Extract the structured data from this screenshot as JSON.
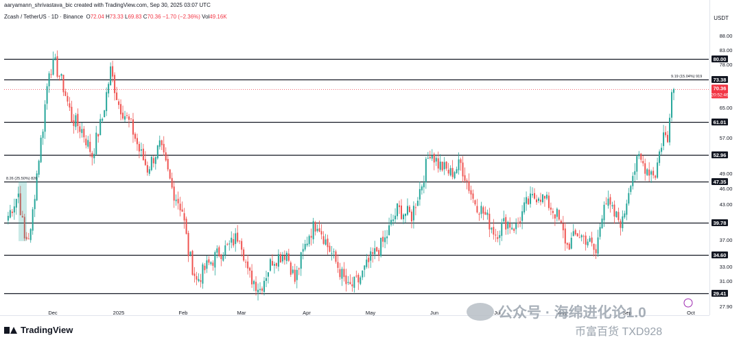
{
  "header": {
    "credit": "aaryamann_shrivastava_bic created with TradingView.com, Sep 30, 2025 03:07 UTC",
    "symbol": "Zcash / TetherUS · 1D · Binance",
    "open_label": "O",
    "open": "72.04",
    "high_label": "H",
    "high": "73.33",
    "low_label": "L",
    "low": "69.83",
    "close_label": "C",
    "close": "70.36",
    "change": "−1.70 (−2.36%)",
    "vol_label": "Vol",
    "vol": "49.16K"
  },
  "price_axis": {
    "currency": "USDT",
    "current_price": "70.36",
    "countdown": "20:52:46"
  },
  "footer": {
    "brand": "TradingView"
  },
  "watermark": {
    "text": "公众号 · 海绵进化论1.0",
    "sub": "币富百货 TXD928"
  },
  "colors": {
    "up": "#26a69a",
    "down": "#ef5350",
    "level_line": "#131722",
    "label_bg": "#131722",
    "current_bg": "#f23645"
  },
  "chart_data": {
    "type": "candlestick",
    "title": "",
    "ylim": [
      27,
      92
    ],
    "y_ticks": [
      "88.00",
      "83.00",
      "78.00",
      "65.00",
      "57.00",
      "49.00",
      "46.00",
      "43.00",
      "37.00",
      "33.00",
      "31.00",
      "27.90"
    ],
    "x_ticks": [
      "Dec",
      "2025",
      "Feb",
      "Mar",
      "Apr",
      "May",
      "Jun",
      "Jul",
      "Aug",
      "Sep",
      "Oct"
    ],
    "horizontal_levels": [
      "80.00",
      "73.38",
      "61.01",
      "52.96",
      "47.35",
      "39.78",
      "34.60",
      "29.41"
    ],
    "annotations": [
      {
        "text": "8.26 (25.50%) 826",
        "price": 47.35
      },
      {
        "text": "9.19 (15.04%) 919",
        "price": 73.38
      }
    ],
    "waypoints": [
      [
        "2024-11-09",
        41
      ],
      [
        "2024-11-14",
        45
      ],
      [
        "2024-11-17",
        37
      ],
      [
        "2024-11-20",
        38
      ],
      [
        "2024-11-26",
        60
      ],
      [
        "2024-11-29",
        77
      ],
      [
        "2024-12-02",
        78
      ],
      [
        "2024-12-06",
        71
      ],
      [
        "2024-12-10",
        62
      ],
      [
        "2024-12-15",
        59
      ],
      [
        "2024-12-20",
        53
      ],
      [
        "2024-12-25",
        62
      ],
      [
        "2024-12-29",
        76
      ],
      [
        "2025-01-02",
        66
      ],
      [
        "2025-01-08",
        60
      ],
      [
        "2025-01-12",
        54
      ],
      [
        "2025-01-16",
        50
      ],
      [
        "2025-01-22",
        55
      ],
      [
        "2025-01-28",
        46
      ],
      [
        "2025-02-02",
        42
      ],
      [
        "2025-02-05",
        35
      ],
      [
        "2025-02-09",
        31
      ],
      [
        "2025-02-14",
        33
      ],
      [
        "2025-02-20",
        35
      ],
      [
        "2025-02-25",
        36
      ],
      [
        "2025-03-02",
        38
      ],
      [
        "2025-03-06",
        32
      ],
      [
        "2025-03-12",
        30
      ],
      [
        "2025-03-18",
        34
      ],
      [
        "2025-03-25",
        35
      ],
      [
        "2025-03-29",
        31
      ],
      [
        "2025-04-05",
        38
      ],
      [
        "2025-04-09",
        40
      ],
      [
        "2025-04-14",
        36
      ],
      [
        "2025-04-19",
        33
      ],
      [
        "2025-04-24",
        30
      ],
      [
        "2025-04-29",
        31
      ],
      [
        "2025-05-05",
        34
      ],
      [
        "2025-05-12",
        37
      ],
      [
        "2025-05-18",
        42
      ],
      [
        "2025-05-25",
        41
      ],
      [
        "2025-05-30",
        47
      ],
      [
        "2025-06-03",
        54
      ],
      [
        "2025-06-07",
        51
      ],
      [
        "2025-06-13",
        49
      ],
      [
        "2025-06-18",
        51
      ],
      [
        "2025-06-24",
        44
      ],
      [
        "2025-06-30",
        41
      ],
      [
        "2025-07-05",
        38
      ],
      [
        "2025-07-10",
        40
      ],
      [
        "2025-07-15",
        39
      ],
      [
        "2025-07-20",
        43
      ],
      [
        "2025-07-26",
        45
      ],
      [
        "2025-07-31",
        43
      ],
      [
        "2025-08-04",
        41
      ],
      [
        "2025-08-09",
        36
      ],
      [
        "2025-08-14",
        38
      ],
      [
        "2025-08-19",
        37
      ],
      [
        "2025-08-23",
        34.8
      ],
      [
        "2025-08-27",
        44
      ],
      [
        "2025-09-01",
        41
      ],
      [
        "2025-09-05",
        39.8
      ],
      [
        "2025-09-09",
        48
      ],
      [
        "2025-09-13",
        52
      ],
      [
        "2025-09-17",
        50
      ],
      [
        "2025-09-21",
        49
      ],
      [
        "2025-09-25",
        58
      ],
      [
        "2025-09-27",
        56
      ],
      [
        "2025-09-29",
        72
      ],
      [
        "2025-09-30",
        70.36
      ]
    ]
  }
}
